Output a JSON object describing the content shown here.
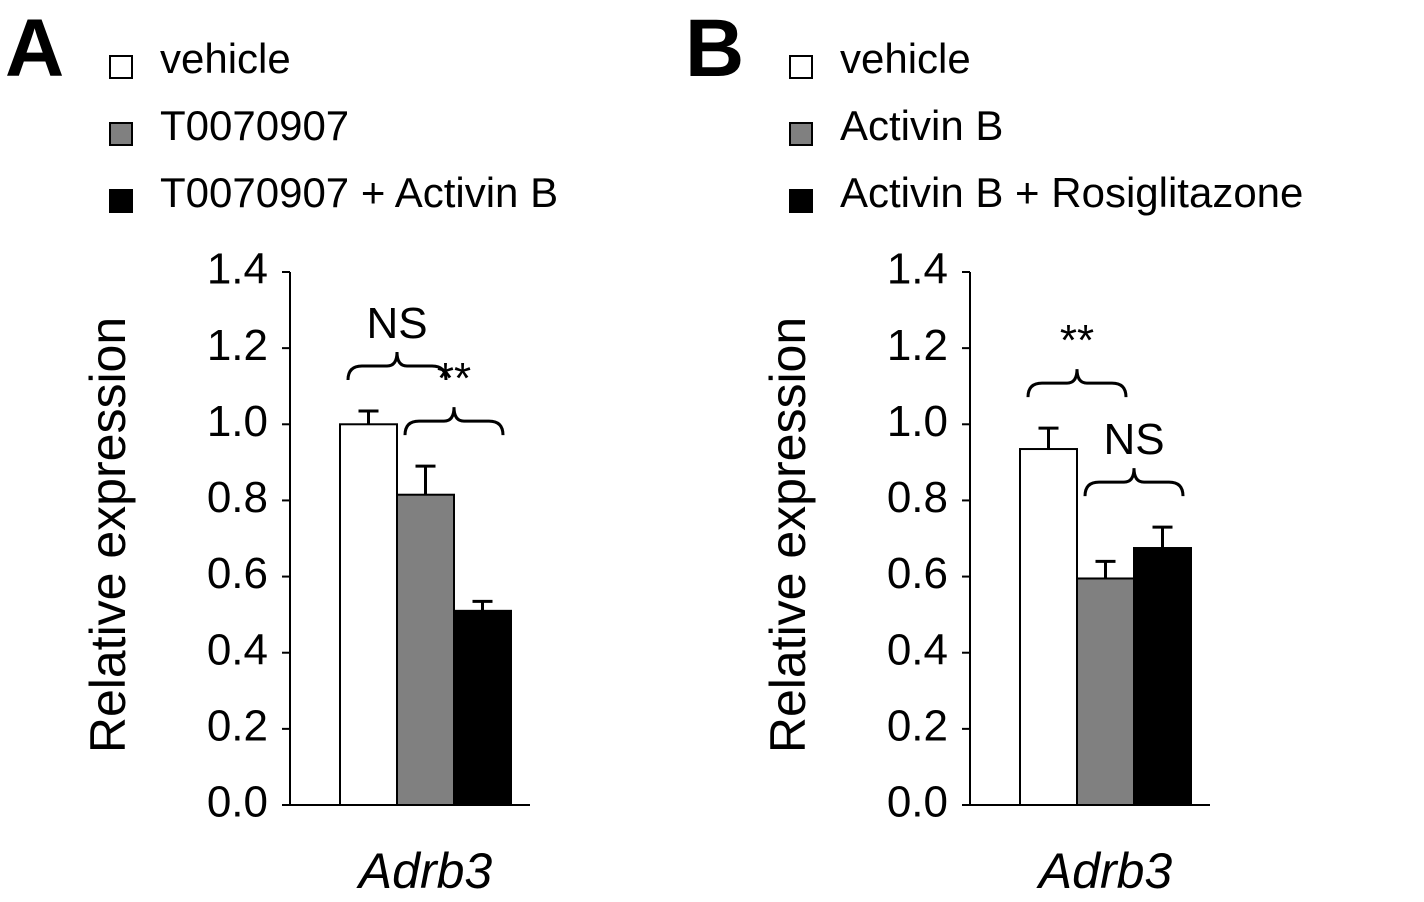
{
  "chart_data": [
    {
      "type": "bar",
      "panel_label": "A",
      "ylabel": "Relative expression",
      "categories": [
        "Adrb3"
      ],
      "series": [
        {
          "name": "vehicle",
          "color": "#ffffff",
          "values": [
            1.0
          ],
          "errors": [
            0.035
          ]
        },
        {
          "name": "T0070907",
          "color": "#808080",
          "values": [
            0.815
          ],
          "errors": [
            0.075
          ]
        },
        {
          "name": "T0070907 + Activin B",
          "color": "#000000",
          "values": [
            0.51
          ],
          "errors": [
            0.025
          ]
        }
      ],
      "ylim": [
        0,
        1.4
      ],
      "yticks": [
        {
          "value": 0,
          "label": "0.0"
        },
        0.2,
        0.4,
        0.6,
        0.8,
        {
          "value": 1,
          "label": "1.0"
        },
        1.2,
        1.4
      ],
      "annotations": [
        {
          "text": "NS"
        },
        {
          "text": "**"
        }
      ]
    },
    {
      "type": "bar",
      "panel_label": "B",
      "ylabel": "Relative expression",
      "categories": [
        "Adrb3"
      ],
      "series": [
        {
          "name": "vehicle",
          "color": "#ffffff",
          "values": [
            0.935
          ],
          "errors": [
            0.055
          ]
        },
        {
          "name": "Activin B",
          "color": "#808080",
          "values": [
            0.595
          ],
          "errors": [
            0.045
          ]
        },
        {
          "name": "Activin B + Rosiglitazone",
          "color": "#000000",
          "values": [
            0.675
          ],
          "errors": [
            0.055
          ]
        }
      ],
      "ylim": [
        0,
        1.4
      ],
      "yticks": [
        {
          "value": 0,
          "label": "0.0"
        },
        0.2,
        0.4,
        0.6,
        0.8,
        {
          "value": 1,
          "label": "1.0"
        },
        1.2,
        1.4
      ],
      "annotations": [
        {
          "text": "**"
        },
        {
          "text": "NS"
        }
      ]
    }
  ]
}
